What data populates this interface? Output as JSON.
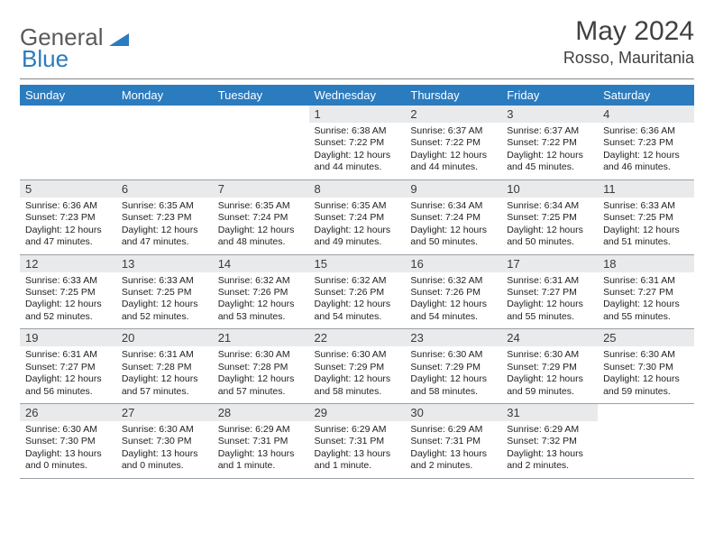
{
  "brand": {
    "part1": "General",
    "part2": "Blue",
    "triangle_color": "#2b7bbf"
  },
  "title": "May 2024",
  "location": "Rosso, Mauritania",
  "colors": {
    "header_bg": "#2b7bbf",
    "header_fg": "#ffffff",
    "daynum_bg": "#e9eaec",
    "border": "#9aa0a6",
    "text": "#222222"
  },
  "day_headers": [
    "Sunday",
    "Monday",
    "Tuesday",
    "Wednesday",
    "Thursday",
    "Friday",
    "Saturday"
  ],
  "weeks": [
    [
      {
        "n": "",
        "l1": "",
        "l2": "",
        "l3": "",
        "l4": ""
      },
      {
        "n": "",
        "l1": "",
        "l2": "",
        "l3": "",
        "l4": ""
      },
      {
        "n": "",
        "l1": "",
        "l2": "",
        "l3": "",
        "l4": ""
      },
      {
        "n": "1",
        "l1": "Sunrise: 6:38 AM",
        "l2": "Sunset: 7:22 PM",
        "l3": "Daylight: 12 hours",
        "l4": "and 44 minutes."
      },
      {
        "n": "2",
        "l1": "Sunrise: 6:37 AM",
        "l2": "Sunset: 7:22 PM",
        "l3": "Daylight: 12 hours",
        "l4": "and 44 minutes."
      },
      {
        "n": "3",
        "l1": "Sunrise: 6:37 AM",
        "l2": "Sunset: 7:22 PM",
        "l3": "Daylight: 12 hours",
        "l4": "and 45 minutes."
      },
      {
        "n": "4",
        "l1": "Sunrise: 6:36 AM",
        "l2": "Sunset: 7:23 PM",
        "l3": "Daylight: 12 hours",
        "l4": "and 46 minutes."
      }
    ],
    [
      {
        "n": "5",
        "l1": "Sunrise: 6:36 AM",
        "l2": "Sunset: 7:23 PM",
        "l3": "Daylight: 12 hours",
        "l4": "and 47 minutes."
      },
      {
        "n": "6",
        "l1": "Sunrise: 6:35 AM",
        "l2": "Sunset: 7:23 PM",
        "l3": "Daylight: 12 hours",
        "l4": "and 47 minutes."
      },
      {
        "n": "7",
        "l1": "Sunrise: 6:35 AM",
        "l2": "Sunset: 7:24 PM",
        "l3": "Daylight: 12 hours",
        "l4": "and 48 minutes."
      },
      {
        "n": "8",
        "l1": "Sunrise: 6:35 AM",
        "l2": "Sunset: 7:24 PM",
        "l3": "Daylight: 12 hours",
        "l4": "and 49 minutes."
      },
      {
        "n": "9",
        "l1": "Sunrise: 6:34 AM",
        "l2": "Sunset: 7:24 PM",
        "l3": "Daylight: 12 hours",
        "l4": "and 50 minutes."
      },
      {
        "n": "10",
        "l1": "Sunrise: 6:34 AM",
        "l2": "Sunset: 7:25 PM",
        "l3": "Daylight: 12 hours",
        "l4": "and 50 minutes."
      },
      {
        "n": "11",
        "l1": "Sunrise: 6:33 AM",
        "l2": "Sunset: 7:25 PM",
        "l3": "Daylight: 12 hours",
        "l4": "and 51 minutes."
      }
    ],
    [
      {
        "n": "12",
        "l1": "Sunrise: 6:33 AM",
        "l2": "Sunset: 7:25 PM",
        "l3": "Daylight: 12 hours",
        "l4": "and 52 minutes."
      },
      {
        "n": "13",
        "l1": "Sunrise: 6:33 AM",
        "l2": "Sunset: 7:25 PM",
        "l3": "Daylight: 12 hours",
        "l4": "and 52 minutes."
      },
      {
        "n": "14",
        "l1": "Sunrise: 6:32 AM",
        "l2": "Sunset: 7:26 PM",
        "l3": "Daylight: 12 hours",
        "l4": "and 53 minutes."
      },
      {
        "n": "15",
        "l1": "Sunrise: 6:32 AM",
        "l2": "Sunset: 7:26 PM",
        "l3": "Daylight: 12 hours",
        "l4": "and 54 minutes."
      },
      {
        "n": "16",
        "l1": "Sunrise: 6:32 AM",
        "l2": "Sunset: 7:26 PM",
        "l3": "Daylight: 12 hours",
        "l4": "and 54 minutes."
      },
      {
        "n": "17",
        "l1": "Sunrise: 6:31 AM",
        "l2": "Sunset: 7:27 PM",
        "l3": "Daylight: 12 hours",
        "l4": "and 55 minutes."
      },
      {
        "n": "18",
        "l1": "Sunrise: 6:31 AM",
        "l2": "Sunset: 7:27 PM",
        "l3": "Daylight: 12 hours",
        "l4": "and 55 minutes."
      }
    ],
    [
      {
        "n": "19",
        "l1": "Sunrise: 6:31 AM",
        "l2": "Sunset: 7:27 PM",
        "l3": "Daylight: 12 hours",
        "l4": "and 56 minutes."
      },
      {
        "n": "20",
        "l1": "Sunrise: 6:31 AM",
        "l2": "Sunset: 7:28 PM",
        "l3": "Daylight: 12 hours",
        "l4": "and 57 minutes."
      },
      {
        "n": "21",
        "l1": "Sunrise: 6:30 AM",
        "l2": "Sunset: 7:28 PM",
        "l3": "Daylight: 12 hours",
        "l4": "and 57 minutes."
      },
      {
        "n": "22",
        "l1": "Sunrise: 6:30 AM",
        "l2": "Sunset: 7:29 PM",
        "l3": "Daylight: 12 hours",
        "l4": "and 58 minutes."
      },
      {
        "n": "23",
        "l1": "Sunrise: 6:30 AM",
        "l2": "Sunset: 7:29 PM",
        "l3": "Daylight: 12 hours",
        "l4": "and 58 minutes."
      },
      {
        "n": "24",
        "l1": "Sunrise: 6:30 AM",
        "l2": "Sunset: 7:29 PM",
        "l3": "Daylight: 12 hours",
        "l4": "and 59 minutes."
      },
      {
        "n": "25",
        "l1": "Sunrise: 6:30 AM",
        "l2": "Sunset: 7:30 PM",
        "l3": "Daylight: 12 hours",
        "l4": "and 59 minutes."
      }
    ],
    [
      {
        "n": "26",
        "l1": "Sunrise: 6:30 AM",
        "l2": "Sunset: 7:30 PM",
        "l3": "Daylight: 13 hours",
        "l4": "and 0 minutes."
      },
      {
        "n": "27",
        "l1": "Sunrise: 6:30 AM",
        "l2": "Sunset: 7:30 PM",
        "l3": "Daylight: 13 hours",
        "l4": "and 0 minutes."
      },
      {
        "n": "28",
        "l1": "Sunrise: 6:29 AM",
        "l2": "Sunset: 7:31 PM",
        "l3": "Daylight: 13 hours",
        "l4": "and 1 minute."
      },
      {
        "n": "29",
        "l1": "Sunrise: 6:29 AM",
        "l2": "Sunset: 7:31 PM",
        "l3": "Daylight: 13 hours",
        "l4": "and 1 minute."
      },
      {
        "n": "30",
        "l1": "Sunrise: 6:29 AM",
        "l2": "Sunset: 7:31 PM",
        "l3": "Daylight: 13 hours",
        "l4": "and 2 minutes."
      },
      {
        "n": "31",
        "l1": "Sunrise: 6:29 AM",
        "l2": "Sunset: 7:32 PM",
        "l3": "Daylight: 13 hours",
        "l4": "and 2 minutes."
      },
      {
        "n": "",
        "l1": "",
        "l2": "",
        "l3": "",
        "l4": ""
      }
    ]
  ]
}
